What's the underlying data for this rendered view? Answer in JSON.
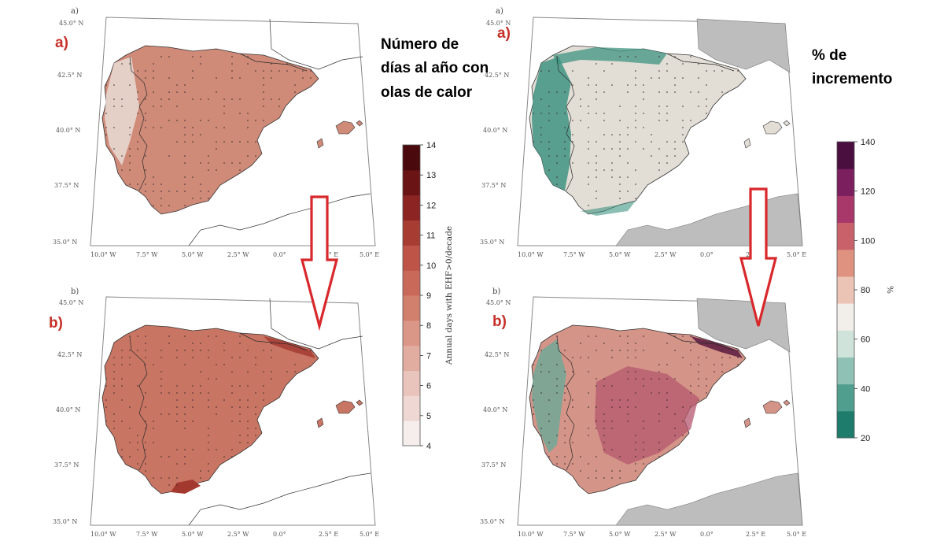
{
  "title_left": [
    "Número de",
    "días al año con",
    "olas de calor"
  ],
  "title_right": [
    "% de",
    "incremento"
  ],
  "panel_labels": {
    "small_a": "a)",
    "small_b": "b)",
    "big_a": "a)",
    "big_b": "b)"
  },
  "lat_ticks": [
    "45.0° N",
    "42.5° N",
    "40.0° N",
    "37.5° N",
    "35.0° N"
  ],
  "lon_ticks": [
    "10.0° W",
    "7.5° W",
    "5.0° W",
    "2.5° W",
    "0.0°",
    "2.5° E",
    "5.0° E"
  ],
  "colorbar_left": {
    "label": "Annual days with EHF>0/decade",
    "ticks": [
      "4",
      "5",
      "6",
      "7",
      "8",
      "9",
      "10",
      "11",
      "12",
      "13",
      "14"
    ],
    "min": 4,
    "max": 14,
    "colors": [
      "#f5eeec",
      "#efd8d3",
      "#e9c4bc",
      "#e2ada1",
      "#da9686",
      "#d2806e",
      "#c9695a",
      "#bd5447",
      "#a73c33",
      "#8b2422",
      "#6b1416",
      "#4a0a0d"
    ]
  },
  "colorbar_right": {
    "label": "%",
    "ticks": [
      "20",
      "40",
      "60",
      "80",
      "100",
      "120",
      "140"
    ],
    "min": 20,
    "max": 140,
    "colors": [
      "#1d7c6c",
      "#4f9e8e",
      "#8fc2b4",
      "#cfe3da",
      "#f2eeea",
      "#ebc4b6",
      "#de927f",
      "#c9616a",
      "#a8386a",
      "#7b1f5e",
      "#4a0e3f"
    ]
  },
  "map_fills": {
    "left_a": "#cf8a78",
    "left_b": "#c97563",
    "right_a": "#e2ddd5",
    "right_b": "#d49488",
    "right_a_coast": "#3f9482",
    "right_b_coast": "#6aa997",
    "right_b_core": "#b5576e",
    "left_a_west": "#e9dcd6",
    "left_b_hot": "#a3382f"
  },
  "arrow_color": "#d8282b"
}
